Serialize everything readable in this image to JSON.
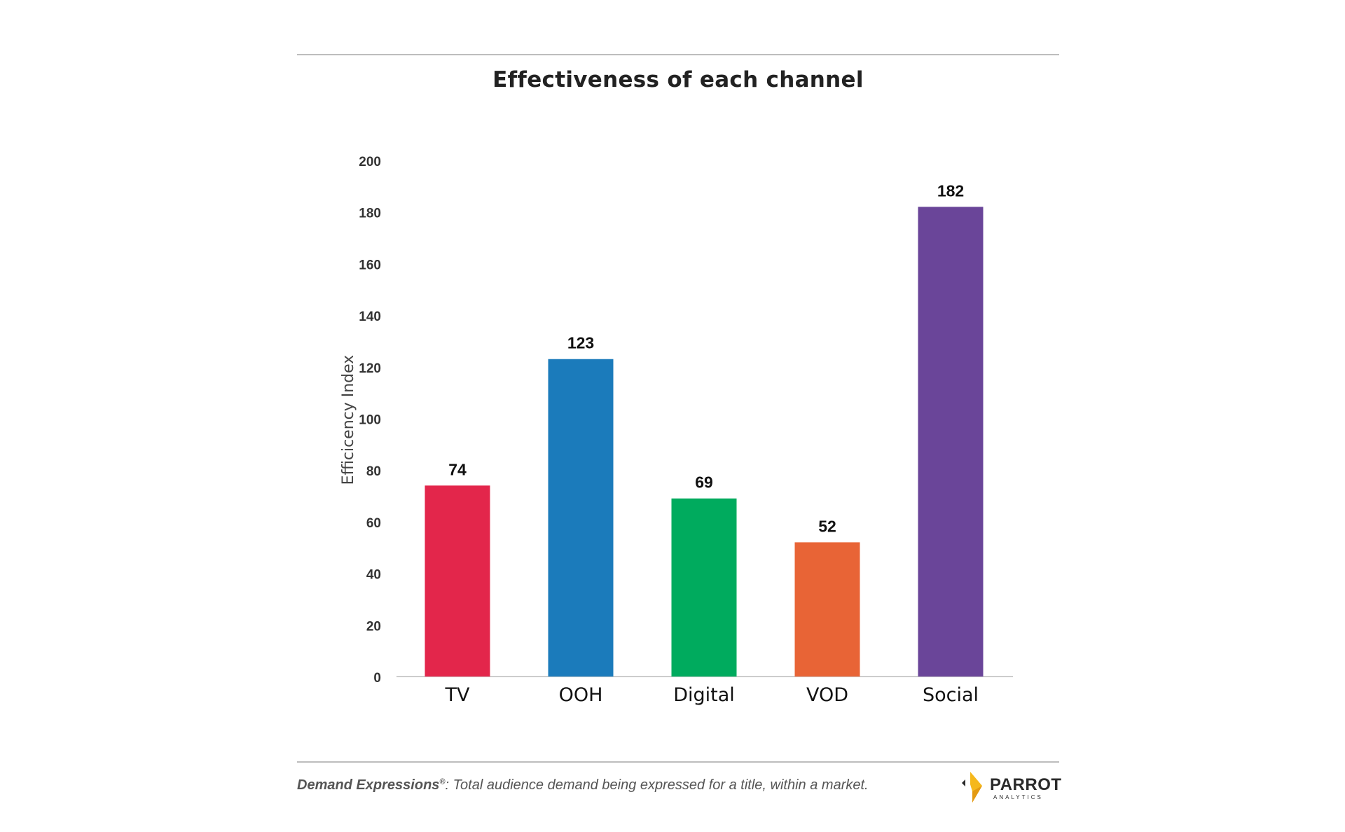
{
  "colors": {
    "tv": "#e3264b",
    "ooh": "#1b7bbb",
    "digital": "#00ab5e",
    "vod": "#e86436",
    "social": "#6a4599",
    "logo_accent": "#f5b81c"
  },
  "chart_data": {
    "type": "bar",
    "title": "Effectiveness of each channel",
    "xlabel": "",
    "ylabel": "Efficicency Index",
    "categories": [
      "TV",
      "OOH",
      "Digital",
      "VOD",
      "Social"
    ],
    "values": [
      74,
      123,
      69,
      52,
      182
    ],
    "data_labels": [
      "74",
      "123",
      "69",
      "52",
      "182"
    ],
    "ylim": [
      0,
      200
    ],
    "yticks": [
      0,
      20,
      40,
      60,
      80,
      100,
      120,
      140,
      160,
      180,
      200
    ],
    "grid": false,
    "legend": "none",
    "bar_colors": [
      "#e3264b",
      "#1b7bbb",
      "#00ab5e",
      "#e86436",
      "#6a4599"
    ]
  },
  "footer": {
    "term": "Demand Expressions",
    "registered": "®",
    "definition": ": Total audience demand being expressed for a title, within a market."
  },
  "logo": {
    "name": "PARROT",
    "sub": "ANALYTICS",
    "icon": "parrot-logo-icon"
  }
}
